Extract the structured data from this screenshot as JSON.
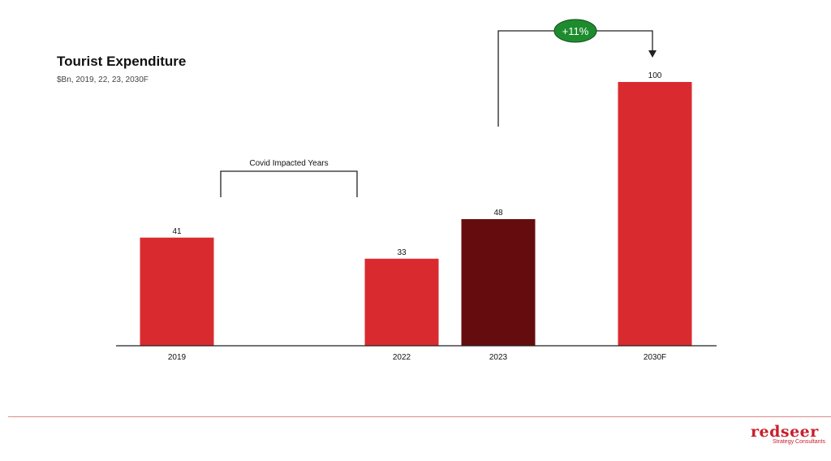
{
  "header": {
    "title": "Tourist Expenditure",
    "subtitle": "$Bn, 2019, 22, 23, 2030F"
  },
  "annotations": {
    "covid_label": "Covid Impacted Years",
    "growth_label": "+11%"
  },
  "logo": {
    "word": "redseer",
    "tagline": "Strategy Consultants"
  },
  "colors": {
    "bar": "#d92b2f",
    "bar_highlight": "#650d0e",
    "growth_badge": "#1e8c2e",
    "footer_rule": "#d98a8a",
    "logo": "#c8202c"
  },
  "chart_data": {
    "type": "bar",
    "title": "Tourist Expenditure",
    "subtitle": "$Bn, 2019, 22, 23, 2030F",
    "categories": [
      "2019",
      "2022",
      "2023",
      "2030F"
    ],
    "values": [
      41,
      33,
      48,
      100
    ],
    "highlight_category": "2023",
    "ylim": [
      0,
      100
    ],
    "grid": false,
    "legend": "none"
  }
}
